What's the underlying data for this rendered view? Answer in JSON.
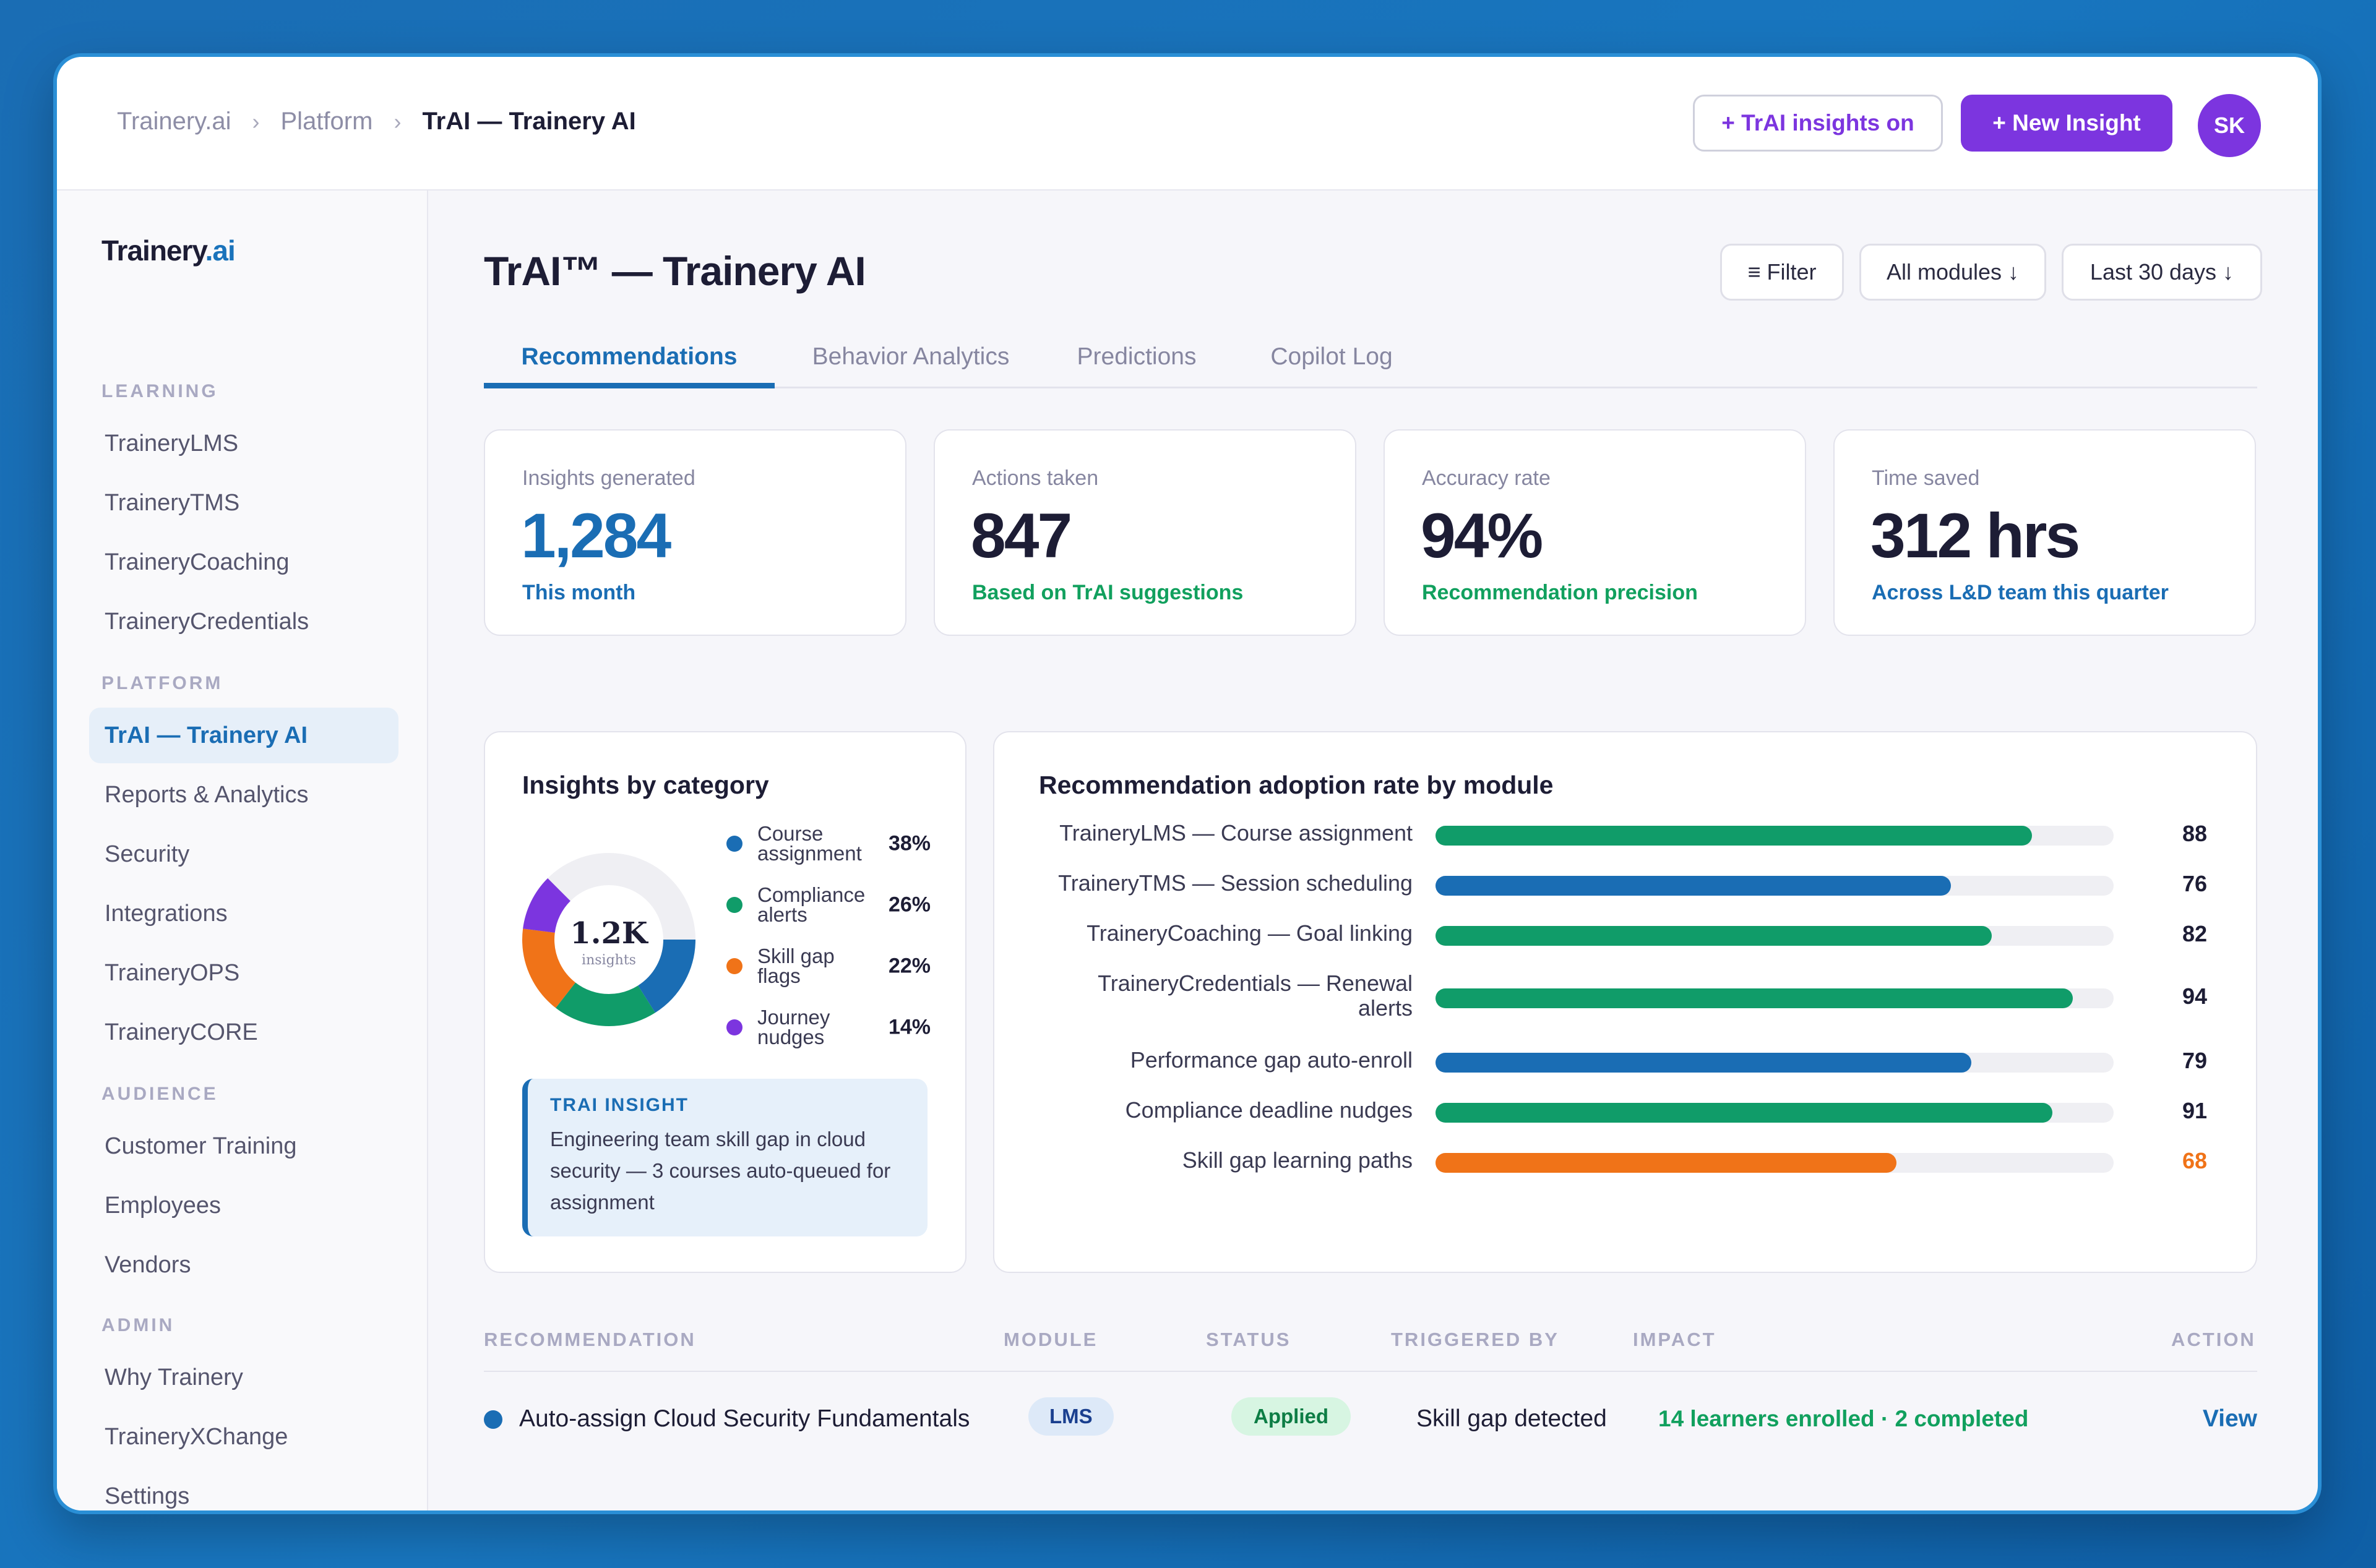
{
  "breadcrumb": {
    "root": "Trainery.ai",
    "section": "Platform",
    "current": "TrAI — Trainery AI",
    "separator": "›"
  },
  "header": {
    "insights_toggle_label": "+ TrAI insights on",
    "new_insight_label": "+ New Insight",
    "avatar_initials": "SK"
  },
  "sidebar": {
    "logo_main": "Trainery",
    "logo_accent": ".ai",
    "sections": [
      {
        "title": "LEARNING",
        "items": [
          "TraineryLMS",
          "TraineryTMS",
          "TraineryCoaching",
          "TraineryCredentials"
        ]
      },
      {
        "title": "PLATFORM",
        "items": [
          "TrAI — Trainery AI",
          "Reports & Analytics",
          "Security",
          "Integrations",
          "TraineryOPS",
          "TraineryCORE"
        ]
      },
      {
        "title": "AUDIENCE",
        "items": [
          "Customer Training",
          "Employees",
          "Vendors"
        ]
      },
      {
        "title": "ADMIN",
        "items": [
          "Why Trainery",
          "TraineryXChange",
          "Settings"
        ]
      }
    ],
    "active_item": "TrAI — Trainery AI"
  },
  "page": {
    "title": "TrAI™ — Trainery AI",
    "filter_label": "≡ Filter",
    "modules_label": "All modules ↓",
    "range_label": "Last 30 days ↓"
  },
  "tabs": [
    {
      "label": "Recommendations",
      "active": true
    },
    {
      "label": "Behavior Analytics",
      "active": false
    },
    {
      "label": "Predictions",
      "active": false
    },
    {
      "label": "Copilot Log",
      "active": false
    }
  ],
  "stats": [
    {
      "label": "Insights generated",
      "value": "1,284",
      "sub": "This month"
    },
    {
      "label": "Actions taken",
      "value": "847",
      "sub": "Based on TrAI suggestions"
    },
    {
      "label": "Accuracy rate",
      "value": "94%",
      "sub": "Recommendation precision"
    },
    {
      "label": "Time saved",
      "value": "312 hrs",
      "sub": "Across L&D team this quarter"
    }
  ],
  "colors": {
    "blue": "#1a6db4",
    "green": "#11a05e",
    "green_bar": "#109c69",
    "orange": "#f07318",
    "purple": "#7c35df",
    "track": "#efeff3"
  },
  "category_panel": {
    "title": "Insights by category",
    "center_value": "1.2K",
    "center_label": "insights",
    "legend": [
      {
        "label": "Course assignment",
        "value": "38%",
        "color": "#1a6db4"
      },
      {
        "label": "Compliance alerts",
        "value": "26%",
        "color": "#109c69"
      },
      {
        "label": "Skill gap flags",
        "value": "22%",
        "color": "#f07318"
      },
      {
        "label": "Journey nudges",
        "value": "14%",
        "color": "#7c35df"
      }
    ],
    "insight": {
      "kicker": "TRAI INSIGHT",
      "text": "Engineering team skill gap in cloud security — 3 courses auto-queued for assignment"
    }
  },
  "adoption_panel": {
    "title": "Recommendation adoption rate by module"
  },
  "chart_data": [
    {
      "type": "pie",
      "title": "Insights by category",
      "categories": [
        "Course assignment",
        "Compliance alerts",
        "Skill gap flags",
        "Journey nudges"
      ],
      "values": [
        38,
        26,
        22,
        14
      ]
    },
    {
      "type": "bar",
      "title": "Recommendation adoption rate by module",
      "categories": [
        "TraineryLMS — Course assignment",
        "TraineryTMS — Session scheduling",
        "TraineryCoaching — Goal linking",
        "TraineryCredentials — Renewal alerts",
        "Performance gap auto-enroll",
        "Compliance deadline nudges",
        "Skill gap learning paths"
      ],
      "values": [
        88,
        76,
        82,
        94,
        79,
        91,
        68
      ],
      "bar_colors": [
        "#109c69",
        "#1a6db4",
        "#109c69",
        "#109c69",
        "#1a6db4",
        "#109c69",
        "#f07318"
      ],
      "ylim": [
        0,
        100
      ]
    }
  ],
  "table": {
    "headers": [
      "RECOMMENDATION",
      "MODULE",
      "STATUS",
      "TRIGGERED BY",
      "IMPACT",
      "ACTION"
    ],
    "rows": [
      {
        "recommendation": "Auto-assign Cloud Security Fundamentals",
        "module": "LMS",
        "status": "Applied",
        "triggered_by": "Skill gap detected",
        "impact": "14 learners enrolled · 2 completed",
        "action": "View"
      }
    ]
  }
}
